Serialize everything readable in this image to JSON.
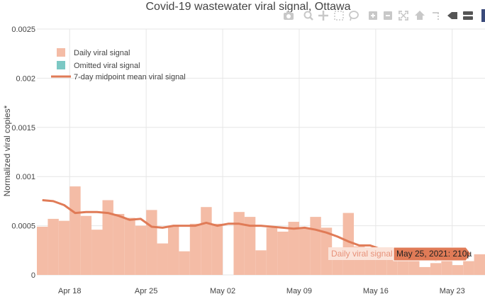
{
  "chart_data": {
    "type": "bar",
    "title": "Covid-19 wastewater viral signal, Ottawa",
    "xlabel": "",
    "ylabel": "Normalized viral copies*",
    "ylim": [
      0,
      0.0025
    ],
    "y_ticks": [
      "0",
      "0.0005",
      "0.001",
      "0.0015",
      "0.002",
      "0.0025"
    ],
    "y_tick_values": [
      0,
      0.0005,
      0.001,
      0.0015,
      0.002,
      0.0025
    ],
    "x_ticks": [
      "Apr 18",
      "Apr 25",
      "May 02",
      "May 09",
      "May 16",
      "May 23"
    ],
    "x_tick_dates": [
      "2021-04-18",
      "2021-04-25",
      "2021-05-02",
      "2021-05-09",
      "2021-05-16",
      "2021-05-23"
    ],
    "x_start": "2021-04-15",
    "x_end": "2021-05-26",
    "grid": true,
    "legend_position": "top-left",
    "legend": [
      {
        "label": "Daily viral signal",
        "kind": "box",
        "color": "#f4bca6"
      },
      {
        "label": "Omitted viral signal",
        "kind": "box",
        "color": "#7cc8c4"
      },
      {
        "label": "7-day midpoint mean viral signal",
        "kind": "line",
        "color": "#e07b57"
      }
    ],
    "series": [
      {
        "name": "Daily viral signal",
        "color": "#f4bca6",
        "x": [
          "2021-04-15",
          "2021-04-16",
          "2021-04-17",
          "2021-04-18",
          "2021-04-19",
          "2021-04-20",
          "2021-04-21",
          "2021-04-22",
          "2021-04-23",
          "2021-04-24",
          "2021-04-25",
          "2021-04-26",
          "2021-04-27",
          "2021-04-28",
          "2021-04-29",
          "2021-04-30",
          "2021-05-01",
          "2021-05-03",
          "2021-05-04",
          "2021-05-05",
          "2021-05-06",
          "2021-05-07",
          "2021-05-08",
          "2021-05-09",
          "2021-05-10",
          "2021-05-11",
          "2021-05-12",
          "2021-05-13",
          "2021-05-14",
          "2021-05-15",
          "2021-05-16",
          "2021-05-17",
          "2021-05-18",
          "2021-05-19",
          "2021-05-20",
          "2021-05-21",
          "2021-05-22",
          "2021-05-23",
          "2021-05-24",
          "2021-05-25"
        ],
        "values": [
          0.00049,
          0.00057,
          0.00055,
          0.0009,
          0.0006,
          0.00046,
          0.00076,
          0.00062,
          0.00058,
          0.0005,
          0.00066,
          0.00032,
          0.0005,
          0.00024,
          0.00052,
          0.00069,
          0.00052,
          0.00064,
          0.00059,
          0.00025,
          0.00048,
          0.00044,
          0.00054,
          0.00048,
          0.00059,
          0.00048,
          0.00027,
          0.00063,
          0.00029,
          0.00025,
          0.00021,
          0.00022,
          0.00018,
          0.00016,
          8e-05,
          0.00012,
          0.00015,
          0.0001,
          0.00014,
          0.00021
        ]
      },
      {
        "name": "7-day midpoint mean viral signal",
        "color": "#e07b57",
        "x": [
          "2021-04-15",
          "2021-04-16",
          "2021-04-17",
          "2021-04-18",
          "2021-04-19",
          "2021-04-20",
          "2021-04-21",
          "2021-04-22",
          "2021-04-23",
          "2021-04-24",
          "2021-04-25",
          "2021-04-26",
          "2021-04-27",
          "2021-04-28",
          "2021-04-29",
          "2021-04-30",
          "2021-05-01",
          "2021-05-02",
          "2021-05-03",
          "2021-05-04",
          "2021-05-05",
          "2021-05-06",
          "2021-05-07",
          "2021-05-08",
          "2021-05-09",
          "2021-05-10",
          "2021-05-11",
          "2021-05-12",
          "2021-05-13",
          "2021-05-14",
          "2021-05-15",
          "2021-05-16",
          "2021-05-17",
          "2021-05-18",
          "2021-05-19",
          "2021-05-20",
          "2021-05-21",
          "2021-05-22",
          "2021-05-23",
          "2021-05-24"
        ],
        "values": [
          0.00076,
          0.00075,
          0.00071,
          0.00063,
          0.00064,
          0.00064,
          0.00063,
          0.0006,
          0.00056,
          0.00057,
          0.00049,
          0.00048,
          0.0005,
          0.0005,
          0.0005,
          0.00053,
          0.0005,
          0.00052,
          0.00052,
          0.0005,
          0.0005,
          0.00049,
          0.00048,
          0.00047,
          0.00048,
          0.00046,
          0.00043,
          0.00039,
          0.00034,
          0.0003,
          0.0003,
          0.00026,
          0.00023,
          0.0002,
          0.00018,
          0.00016,
          0.00015,
          0.00016,
          0.00017,
          0.00018
        ]
      }
    ],
    "hover": {
      "series_label": "Daily viral signal",
      "value_label": "May 25, 2021: 210µ",
      "x": "2021-05-25",
      "y": 0.00021
    }
  },
  "modebar": {
    "icons": [
      "camera-icon",
      "zoom-icon",
      "pan-icon",
      "box-select-icon",
      "lasso-icon",
      "zoom-in-icon",
      "zoom-out-icon",
      "autoscale-icon",
      "home-icon",
      "spike-lines-icon",
      "hover-closest-icon",
      "hover-compare-icon"
    ]
  }
}
